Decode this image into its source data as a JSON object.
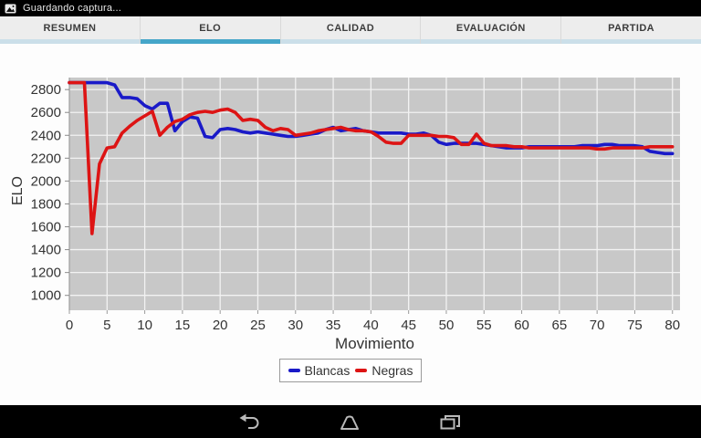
{
  "status_bar": {
    "notification_icon": "screenshot-icon",
    "notification_text": "Guardando captura..."
  },
  "tabs": {
    "items": [
      {
        "label": "RESUMEN",
        "selected": false
      },
      {
        "label": "ELO",
        "selected": true
      },
      {
        "label": "CALIDAD",
        "selected": false
      },
      {
        "label": "EVALUACIÓN",
        "selected": false
      },
      {
        "label": "PARTIDA",
        "selected": false
      }
    ],
    "selected_strip_color": "#45a6c9",
    "unselected_strip_color": "#cbdfe9"
  },
  "chart_data": {
    "type": "line",
    "title": "",
    "xlabel": "Movimiento",
    "ylabel": "ELO",
    "xlim": [
      0,
      81
    ],
    "ylim": [
      870,
      2905
    ],
    "x_ticks": [
      0,
      5,
      10,
      15,
      20,
      25,
      30,
      35,
      40,
      45,
      50,
      55,
      60,
      65,
      70,
      75,
      80
    ],
    "y_ticks": [
      1000,
      1200,
      1400,
      1600,
      1800,
      2000,
      2200,
      2400,
      2600,
      2800
    ],
    "grid": true,
    "plot_background": "#c8c8c8",
    "grid_color": "#f2f2f2",
    "legend_position": "bottom",
    "x": [
      0,
      1,
      2,
      3,
      4,
      5,
      6,
      7,
      8,
      9,
      10,
      11,
      12,
      13,
      14,
      15,
      16,
      17,
      18,
      19,
      20,
      21,
      22,
      23,
      24,
      25,
      26,
      27,
      28,
      29,
      30,
      31,
      32,
      33,
      34,
      35,
      36,
      37,
      38,
      39,
      40,
      41,
      42,
      43,
      44,
      45,
      46,
      47,
      48,
      49,
      50,
      51,
      52,
      53,
      54,
      55,
      56,
      57,
      58,
      59,
      60,
      61,
      62,
      63,
      64,
      65,
      66,
      67,
      68,
      69,
      70,
      71,
      72,
      73,
      74,
      75,
      76,
      77,
      78,
      79,
      80
    ],
    "series": [
      {
        "name": "Blancas",
        "color": "#1a1ac8",
        "values": [
          2860,
          2860,
          2860,
          2860,
          2860,
          2860,
          2840,
          2730,
          2730,
          2720,
          2660,
          2630,
          2680,
          2680,
          2440,
          2520,
          2560,
          2550,
          2390,
          2380,
          2450,
          2460,
          2450,
          2430,
          2420,
          2430,
          2420,
          2410,
          2400,
          2390,
          2390,
          2400,
          2410,
          2420,
          2450,
          2470,
          2440,
          2450,
          2460,
          2440,
          2430,
          2420,
          2420,
          2420,
          2420,
          2410,
          2410,
          2420,
          2400,
          2340,
          2320,
          2330,
          2330,
          2330,
          2330,
          2320,
          2310,
          2300,
          2290,
          2290,
          2290,
          2300,
          2300,
          2300,
          2300,
          2300,
          2300,
          2300,
          2310,
          2310,
          2310,
          2320,
          2320,
          2310,
          2310,
          2310,
          2300,
          2260,
          2250,
          2240,
          2240
        ]
      },
      {
        "name": "Negras",
        "color": "#dd1414",
        "values": [
          2860,
          2860,
          2860,
          1540,
          2150,
          2290,
          2300,
          2420,
          2480,
          2530,
          2570,
          2610,
          2400,
          2470,
          2520,
          2540,
          2580,
          2600,
          2610,
          2600,
          2620,
          2630,
          2600,
          2530,
          2540,
          2530,
          2470,
          2440,
          2460,
          2450,
          2400,
          2410,
          2420,
          2440,
          2450,
          2460,
          2470,
          2450,
          2440,
          2440,
          2430,
          2390,
          2340,
          2330,
          2330,
          2400,
          2400,
          2400,
          2400,
          2390,
          2390,
          2380,
          2320,
          2320,
          2410,
          2330,
          2310,
          2310,
          2310,
          2300,
          2300,
          2290,
          2290,
          2290,
          2290,
          2290,
          2290,
          2290,
          2290,
          2290,
          2280,
          2280,
          2290,
          2290,
          2290,
          2290,
          2290,
          2300,
          2300,
          2300,
          2300
        ]
      }
    ]
  },
  "nav_bar": {
    "buttons": [
      {
        "name": "back-icon"
      },
      {
        "name": "home-icon"
      },
      {
        "name": "recents-icon"
      }
    ]
  }
}
